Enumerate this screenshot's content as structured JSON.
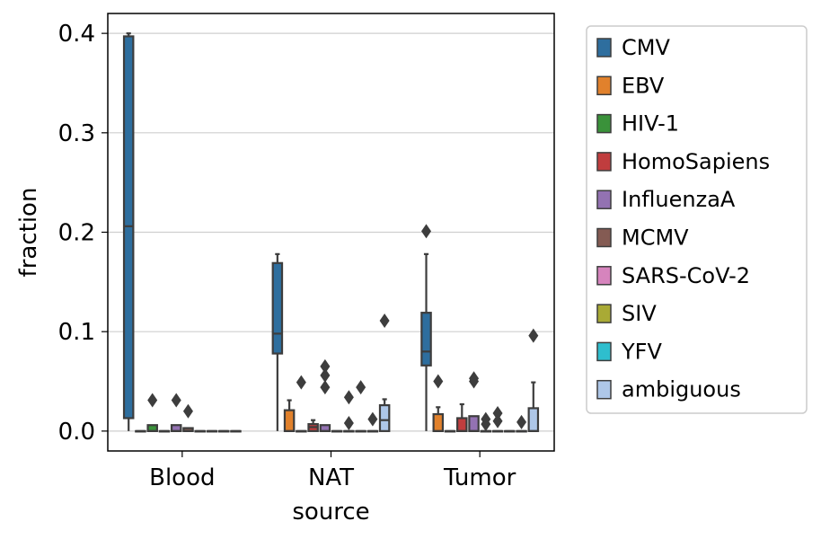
{
  "chart_data": {
    "type": "box",
    "xlabel": "source",
    "ylabel": "fraction",
    "ylim": [
      -0.02,
      0.42
    ],
    "yticks": [
      "0.0",
      "0.1",
      "0.2",
      "0.3",
      "0.4"
    ],
    "grid": "horizontal",
    "legend_position": "outside-right",
    "categories": [
      "Blood",
      "NAT",
      "Tumor"
    ],
    "series": [
      {
        "name": "CMV",
        "color": "#2e6e9e",
        "boxes": [
          {
            "min": 0.0,
            "q1": 0.013,
            "median": 0.206,
            "q3": 0.397,
            "max": 0.4,
            "outliers": []
          },
          {
            "min": 0.0,
            "q1": 0.078,
            "median": 0.098,
            "q3": 0.169,
            "max": 0.178,
            "outliers": []
          },
          {
            "min": 0.0,
            "q1": 0.066,
            "median": 0.08,
            "q3": 0.119,
            "max": 0.178,
            "outliers": [
              0.201
            ]
          }
        ]
      },
      {
        "name": "EBV",
        "color": "#e1812c",
        "boxes": [
          {
            "min": 0.0,
            "q1": 0.0,
            "median": 0.0,
            "q3": 0.0,
            "max": 0.0,
            "outliers": []
          },
          {
            "min": 0.0,
            "q1": 0.0,
            "median": 0.0,
            "q3": 0.021,
            "max": 0.031,
            "outliers": []
          },
          {
            "min": 0.0,
            "q1": 0.0,
            "median": 0.0,
            "q3": 0.017,
            "max": 0.024,
            "outliers": [
              0.05
            ]
          }
        ]
      },
      {
        "name": "HIV-1",
        "color": "#3a923a",
        "boxes": [
          {
            "min": 0.0,
            "q1": 0.0,
            "median": 0.0,
            "q3": 0.006,
            "max": 0.006,
            "outliers": [
              0.031
            ]
          },
          {
            "min": 0.0,
            "q1": 0.0,
            "median": 0.0,
            "q3": 0.0,
            "max": 0.0,
            "outliers": [
              0.049
            ]
          },
          {
            "min": 0.0,
            "q1": 0.0,
            "median": 0.0,
            "q3": 0.0,
            "max": 0.0,
            "outliers": []
          }
        ]
      },
      {
        "name": "HomoSapiens",
        "color": "#c03d3e",
        "boxes": [
          {
            "min": 0.0,
            "q1": 0.0,
            "median": 0.0,
            "q3": 0.0,
            "max": 0.0,
            "outliers": []
          },
          {
            "min": 0.0,
            "q1": 0.0,
            "median": 0.004,
            "q3": 0.007,
            "max": 0.011,
            "outliers": []
          },
          {
            "min": 0.0,
            "q1": 0.0,
            "median": 0.0,
            "q3": 0.013,
            "max": 0.027,
            "outliers": []
          }
        ]
      },
      {
        "name": "InfluenzaA",
        "color": "#9372b2",
        "boxes": [
          {
            "min": 0.0,
            "q1": 0.0,
            "median": 0.0,
            "q3": 0.006,
            "max": 0.006,
            "outliers": [
              0.031
            ]
          },
          {
            "min": 0.0,
            "q1": 0.0,
            "median": 0.0,
            "q3": 0.006,
            "max": 0.006,
            "outliers": [
              0.044,
              0.056,
              0.065
            ]
          },
          {
            "min": 0.0,
            "q1": 0.0,
            "median": 0.0,
            "q3": 0.015,
            "max": 0.015,
            "outliers": [
              0.05,
              0.053
            ]
          }
        ]
      },
      {
        "name": "MCMV",
        "color": "#845b53",
        "boxes": [
          {
            "min": 0.0,
            "q1": 0.0,
            "median": 0.0,
            "q3": 0.003,
            "max": 0.003,
            "outliers": [
              0.02
            ]
          },
          {
            "min": 0.0,
            "q1": 0.0,
            "median": 0.0,
            "q3": 0.0,
            "max": 0.0,
            "outliers": []
          },
          {
            "min": 0.0,
            "q1": 0.0,
            "median": 0.0,
            "q3": 0.0,
            "max": 0.0,
            "outliers": [
              0.007,
              0.012
            ]
          }
        ]
      },
      {
        "name": "SARS-CoV-2",
        "color": "#d684bd",
        "boxes": [
          {
            "min": 0.0,
            "q1": 0.0,
            "median": 0.0,
            "q3": 0.0,
            "max": 0.0,
            "outliers": []
          },
          {
            "min": 0.0,
            "q1": 0.0,
            "median": 0.0,
            "q3": 0.0,
            "max": 0.0,
            "outliers": [
              0.008,
              0.034
            ]
          },
          {
            "min": 0.0,
            "q1": 0.0,
            "median": 0.0,
            "q3": 0.0,
            "max": 0.0,
            "outliers": [
              0.01,
              0.018
            ]
          }
        ]
      },
      {
        "name": "SIV",
        "color": "#a9aa35",
        "boxes": [
          {
            "min": 0.0,
            "q1": 0.0,
            "median": 0.0,
            "q3": 0.0,
            "max": 0.0,
            "outliers": []
          },
          {
            "min": 0.0,
            "q1": 0.0,
            "median": 0.0,
            "q3": 0.0,
            "max": 0.0,
            "outliers": [
              0.044
            ]
          },
          {
            "min": 0.0,
            "q1": 0.0,
            "median": 0.0,
            "q3": 0.0,
            "max": 0.0,
            "outliers": []
          }
        ]
      },
      {
        "name": "YFV",
        "color": "#2ebece",
        "boxes": [
          {
            "min": 0.0,
            "q1": 0.0,
            "median": 0.0,
            "q3": 0.0,
            "max": 0.0,
            "outliers": []
          },
          {
            "min": 0.0,
            "q1": 0.0,
            "median": 0.0,
            "q3": 0.0,
            "max": 0.0,
            "outliers": [
              0.012
            ]
          },
          {
            "min": 0.0,
            "q1": 0.0,
            "median": 0.0,
            "q3": 0.0,
            "max": 0.0,
            "outliers": [
              0.009
            ]
          }
        ]
      },
      {
        "name": "ambiguous",
        "color": "#aec7e8",
        "boxes": [
          {
            "min": 0.0,
            "q1": 0.0,
            "median": 0.0,
            "q3": 0.0,
            "max": 0.0,
            "outliers": []
          },
          {
            "min": 0.0,
            "q1": 0.0,
            "median": 0.011,
            "q3": 0.026,
            "max": 0.032,
            "outliers": [
              0.111
            ]
          },
          {
            "min": 0.0,
            "q1": 0.0,
            "median": 0.0,
            "q3": 0.023,
            "max": 0.049,
            "outliers": [
              0.096
            ]
          }
        ]
      }
    ]
  }
}
